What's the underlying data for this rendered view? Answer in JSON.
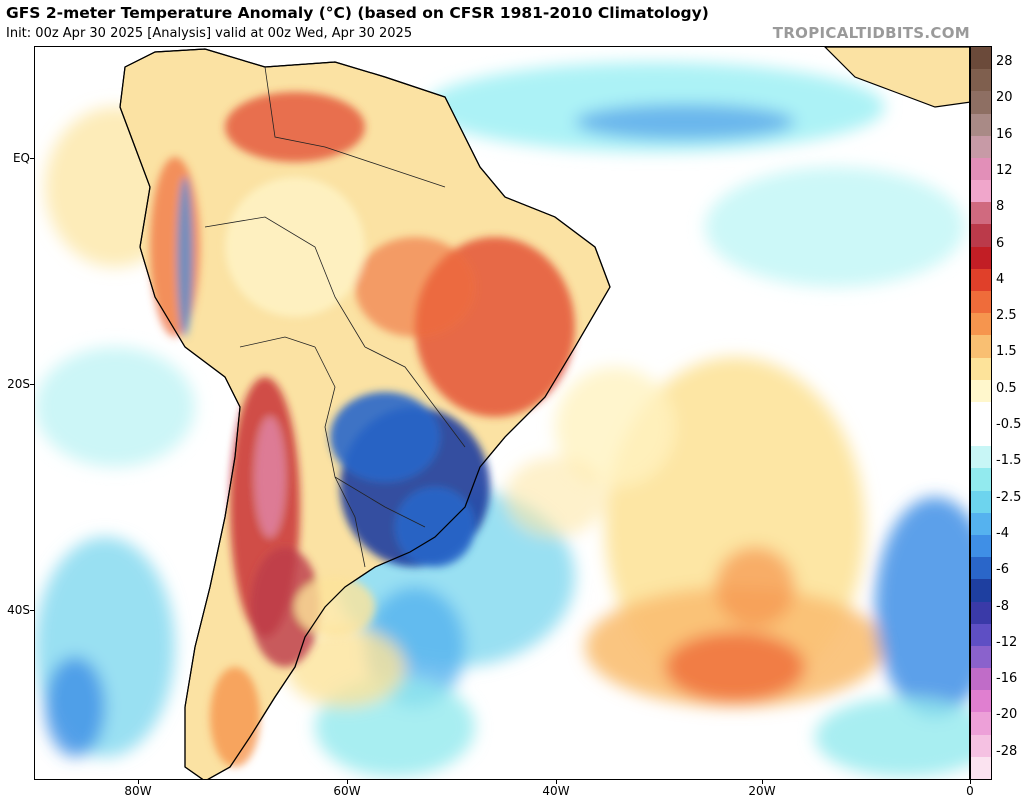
{
  "header": {
    "title": "GFS 2-meter Temperature Anomaly (°C) (based on CFSR 1981-2010 Climatology)",
    "subtitle": "Init: 00z Apr 30 2025   [Analysis]   valid at 00z Wed, Apr 30 2025",
    "brand": "TROPICALTIDBITS.COM"
  },
  "map": {
    "lat_labels": [
      "EQ",
      "20S",
      "40S"
    ],
    "lon_labels": [
      "80W",
      "60W",
      "40W",
      "20W",
      "0"
    ]
  },
  "colorbar": {
    "labels": [
      "28",
      "20",
      "16",
      "12",
      "8",
      "6",
      "4",
      "2.5",
      "1.5",
      "0.5",
      "-0.5",
      "-1.5",
      "-2.5",
      "-4",
      "-6",
      "-8",
      "-12",
      "-16",
      "-20",
      "-28"
    ],
    "colors": [
      "#6b4a3a",
      "#7f5f4e",
      "#8e6f63",
      "#a98a86",
      "#c79aa6",
      "#e28fb8",
      "#f0a6cb",
      "#d06a7f",
      "#bb3a4a",
      "#c21e25",
      "#e0402a",
      "#ef6c3a",
      "#f6954e",
      "#f9bf72",
      "#fde39a",
      "#fff7cc",
      "#ffffff",
      "#ffffff",
      "#c8f6f6",
      "#92eaee",
      "#6dd4ee",
      "#55b2ef",
      "#3f8fe6",
      "#2a66c9",
      "#1e3fa0",
      "#3a3aa8",
      "#5e4fc4",
      "#8a62cc",
      "#c06cc8",
      "#e07fd0",
      "#eda0d8",
      "#f5c1e2",
      "#fbe3f0"
    ]
  }
}
